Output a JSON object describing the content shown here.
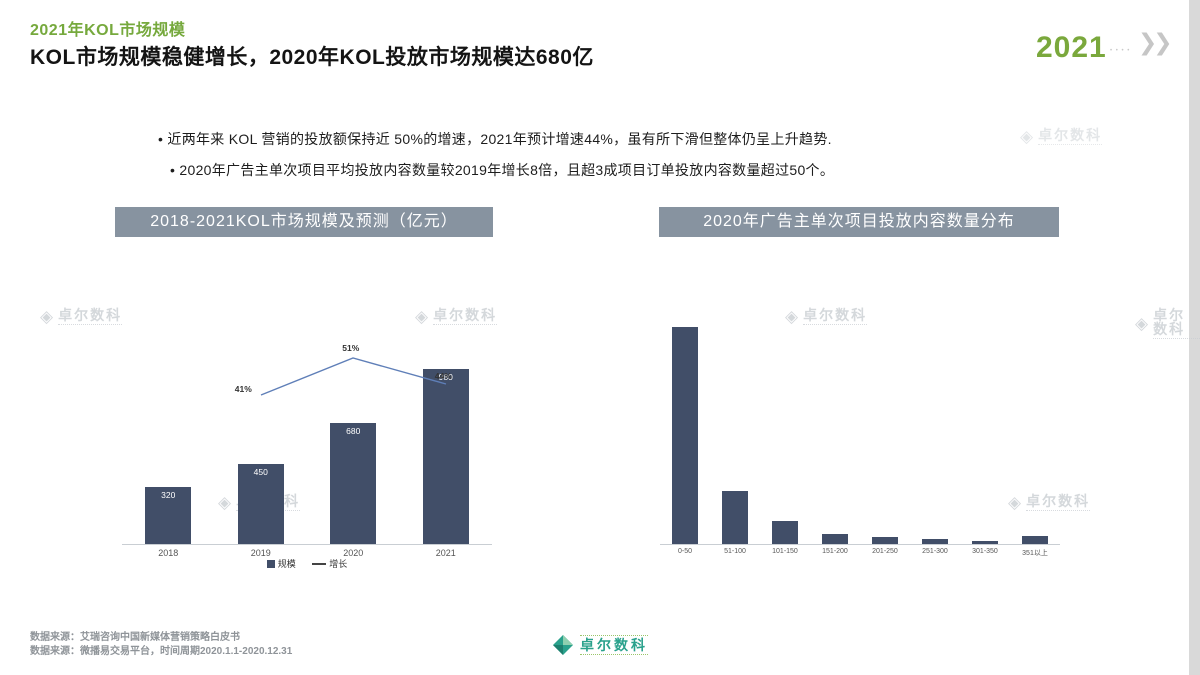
{
  "meta": {
    "title_small": "2021年KOL市场规模",
    "title_main": "KOL市场规模稳健增长，2020年KOL投放市场规模达680亿",
    "year_badge": "2021"
  },
  "icons": {
    "chevrons": "❯❯",
    "dots": "• • • •",
    "watermark_diamond": "◈"
  },
  "bullets": [
    "近两年来 KOL 营销的投放额保持近 50%的增速，2021年预计增速44%，虽有所下滑但整体仍呈上升趋势.",
    "2020年广告主单次项目平均投放内容数量较2019年增长8倍，且超3成项目订单投放内容数量超过50个。"
  ],
  "section_headers": {
    "left": "2018-2021KOL市场规模及预测（亿元）",
    "right": "2020年广告主单次项目投放内容数量分布"
  },
  "chart_data": [
    {
      "type": "bar",
      "title": "2018-2021KOL市场规模及预测（亿元）",
      "categories": [
        "2018",
        "2019",
        "2020",
        "2021"
      ],
      "series": [
        {
          "name": "规模",
          "type": "bar",
          "values": [
            320,
            450,
            680,
            980
          ]
        },
        {
          "name": "增长",
          "type": "line",
          "values": [
            null,
            41,
            51,
            44
          ],
          "unit": "%"
        }
      ],
      "bar_labels": [
        "320",
        "450",
        "680",
        "980"
      ],
      "line_labels": [
        "",
        "41%",
        "51%",
        "44%"
      ],
      "legend_position": "bottom"
    },
    {
      "type": "bar",
      "title": "2020年广告主单次项目投放内容数量分布",
      "categories": [
        "0-50",
        "51-100",
        "101-150",
        "151-200",
        "201-250",
        "251-300",
        "301-350",
        "351以上"
      ],
      "values": [
        66,
        16,
        7,
        3,
        2,
        1.5,
        1,
        2.5
      ]
    }
  ],
  "watermark": {
    "text": "卓尔数科"
  },
  "footer": {
    "sources": [
      "数据来源：艾瑞咨询中国新媒体营销策略白皮书",
      "数据来源：微播易交易平台，时间周期2020.1.1-2020.12.31"
    ],
    "logo_text": "卓尔数科"
  },
  "colors": {
    "accent_green": "#76a93d",
    "header_gray": "#8793a0",
    "bar_navy": "#414e68",
    "line_blue": "#5f7fb8",
    "logo_teal": "#2aa18c",
    "watermark_gray": "#c3c8cd"
  }
}
